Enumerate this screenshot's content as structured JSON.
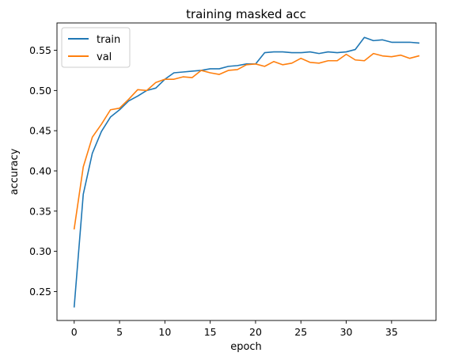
{
  "chart_data": {
    "type": "line",
    "title": "training masked acc",
    "xlabel": "epoch",
    "ylabel": "accuracy",
    "xlim": [
      -1.9,
      39.9
    ],
    "ylim": [
      0.214,
      0.584
    ],
    "xticks": [
      0,
      5,
      10,
      15,
      20,
      25,
      30,
      35
    ],
    "yticks": [
      0.25,
      0.3,
      0.35,
      0.4,
      0.45,
      0.5,
      0.55
    ],
    "ytick_labels": [
      "0.25",
      "0.30",
      "0.35",
      "0.40",
      "0.45",
      "0.50",
      "0.55"
    ],
    "grid": false,
    "legend_position": "upper-left",
    "x": [
      0,
      1,
      2,
      3,
      4,
      5,
      6,
      7,
      8,
      9,
      10,
      11,
      12,
      13,
      14,
      15,
      16,
      17,
      18,
      19,
      20,
      21,
      22,
      23,
      24,
      25,
      26,
      27,
      28,
      29,
      30,
      31,
      32,
      33,
      34,
      35,
      36,
      37,
      38
    ],
    "series": [
      {
        "name": "train",
        "color": "#1f77b4",
        "values": [
          0.231,
          0.371,
          0.422,
          0.449,
          0.467,
          0.476,
          0.487,
          0.493,
          0.5,
          0.503,
          0.514,
          0.522,
          0.523,
          0.524,
          0.525,
          0.527,
          0.527,
          0.53,
          0.531,
          0.533,
          0.533,
          0.547,
          0.548,
          0.548,
          0.547,
          0.547,
          0.548,
          0.546,
          0.548,
          0.547,
          0.548,
          0.551,
          0.566,
          0.562,
          0.563,
          0.56,
          0.56,
          0.56,
          0.559
        ]
      },
      {
        "name": "val",
        "color": "#ff7f0e",
        "values": [
          0.328,
          0.405,
          0.442,
          0.458,
          0.476,
          0.478,
          0.489,
          0.501,
          0.5,
          0.51,
          0.514,
          0.514,
          0.517,
          0.516,
          0.525,
          0.522,
          0.52,
          0.525,
          0.526,
          0.532,
          0.533,
          0.53,
          0.536,
          0.532,
          0.534,
          0.54,
          0.535,
          0.534,
          0.537,
          0.537,
          0.545,
          0.538,
          0.537,
          0.546,
          0.543,
          0.542,
          0.544,
          0.54,
          0.543
        ]
      }
    ]
  }
}
